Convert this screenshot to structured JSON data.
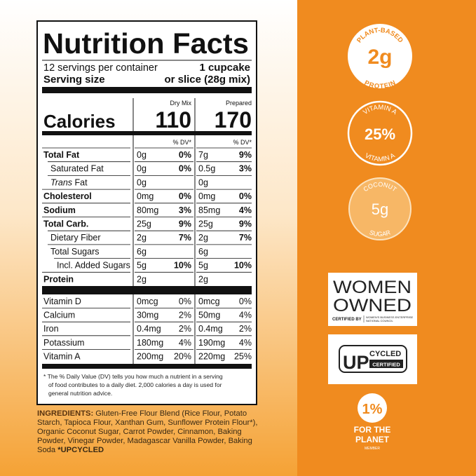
{
  "label": {
    "title": "Nutrition Facts",
    "servings": "12 servings per container",
    "serving_size_label": "Serving size",
    "serving_size_value": "1 cupcake",
    "serving_size_value_2": "or slice (28g mix)",
    "columns": [
      "Dry Mix",
      "Prepared"
    ],
    "calories_label": "Calories",
    "calories": [
      "110",
      "170"
    ],
    "dv_header": "% DV*",
    "rows": [
      {
        "name": "Total Fat",
        "dry_amount": "0g",
        "dry_dv": "0%",
        "prep_amount": "7g",
        "prep_dv": "9%"
      },
      {
        "name": "Saturated Fat",
        "dry_amount": "0g",
        "dry_dv": "0%",
        "prep_amount": "0.5g",
        "prep_dv": "3%"
      },
      {
        "name": "Trans Fat",
        "dry_amount": "0g",
        "prep_amount": "0g"
      },
      {
        "name": "Cholesterol",
        "dry_amount": "0mg",
        "dry_dv": "0%",
        "prep_amount": "0mg",
        "prep_dv": "0%"
      },
      {
        "name": "Sodium",
        "dry_amount": "80mg",
        "dry_dv": "3%",
        "prep_amount": "85mg",
        "prep_dv": "4%"
      },
      {
        "name": "Total Carb.",
        "dry_amount": "25g",
        "dry_dv": "9%",
        "prep_amount": "25g",
        "prep_dv": "9%"
      },
      {
        "name": "Dietary Fiber",
        "dry_amount": "2g",
        "dry_dv": "7%",
        "prep_amount": "2g",
        "prep_dv": "7%"
      },
      {
        "name": "Total Sugars",
        "dry_amount": "6g",
        "prep_amount": "6g"
      },
      {
        "name": "Incl. Added Sugars",
        "dry_amount": "5g",
        "dry_dv": "10%",
        "prep_amount": "5g",
        "prep_dv": "10%"
      },
      {
        "name": "Protein",
        "dry_amount": "2g",
        "prep_amount": "2g"
      },
      {
        "name": "Vitamin D",
        "dry_amount": "0mcg",
        "dry_dv": "0%",
        "prep_amount": "0mcg",
        "prep_dv": "0%"
      },
      {
        "name": "Calcium",
        "dry_amount": "30mg",
        "dry_dv": "2%",
        "prep_amount": "50mg",
        "prep_dv": "4%"
      },
      {
        "name": "Iron",
        "dry_amount": "0.4mg",
        "dry_dv": "2%",
        "prep_amount": "0.4mg",
        "prep_dv": "2%"
      },
      {
        "name": "Potassium",
        "dry_amount": "180mg",
        "dry_dv": "4%",
        "prep_amount": "190mg",
        "prep_dv": "4%"
      },
      {
        "name": "Vitamin A",
        "dry_amount": "200mg",
        "dry_dv": "20%",
        "prep_amount": "220mg",
        "prep_dv": "25%"
      }
    ],
    "footnote": [
      "* The % Daily Value (DV) tells you how much a nutrient in a serving",
      "of food contributes to a daily diet. 2,000 calories a day is used for",
      "general nutrition advice."
    ]
  },
  "ingredients": {
    "label": "INGREDIENTS:",
    "lines": [
      " Gluten-Free Flour Blend (Rice Flour, Potato",
      "Starch, Tapioca Flour, Xanthan Gum, Sunflower Protein Flour*),",
      "Organic Coconut Sugar, Carrot Powder, Cinnamon, Baking",
      "Powder, Vinegar Powder, Madagascar Vanilla Powder, Baking",
      "Soda "
    ],
    "upcycled_note": "*UPCYCLED"
  },
  "badges": {
    "protein": {
      "top": "PLANT-BASED",
      "value": "2g",
      "bottom": "PROTEIN"
    },
    "vitamin": {
      "top": "VITAMIN A",
      "value": "25%",
      "bottom": "VITAMIN A"
    },
    "sugar": {
      "top": "COCONUT",
      "value": "5g",
      "bottom": "SUGAR"
    },
    "women_owned": {
      "line1": "WOMEN",
      "line2": "OWNED",
      "certified_by": "CERTIFIED BY",
      "council": [
        "WOMEN'S BUSINESS ENTERPRISE",
        "NATIONAL COUNCIL"
      ]
    },
    "upcycled": {
      "up": "UP",
      "cycled": "CYCLED",
      "certified": "CERTIFIED"
    },
    "one_percent": {
      "value": "1%",
      "line1": "FOR THE",
      "line2": "PLANET",
      "member": "MEMBER"
    }
  }
}
